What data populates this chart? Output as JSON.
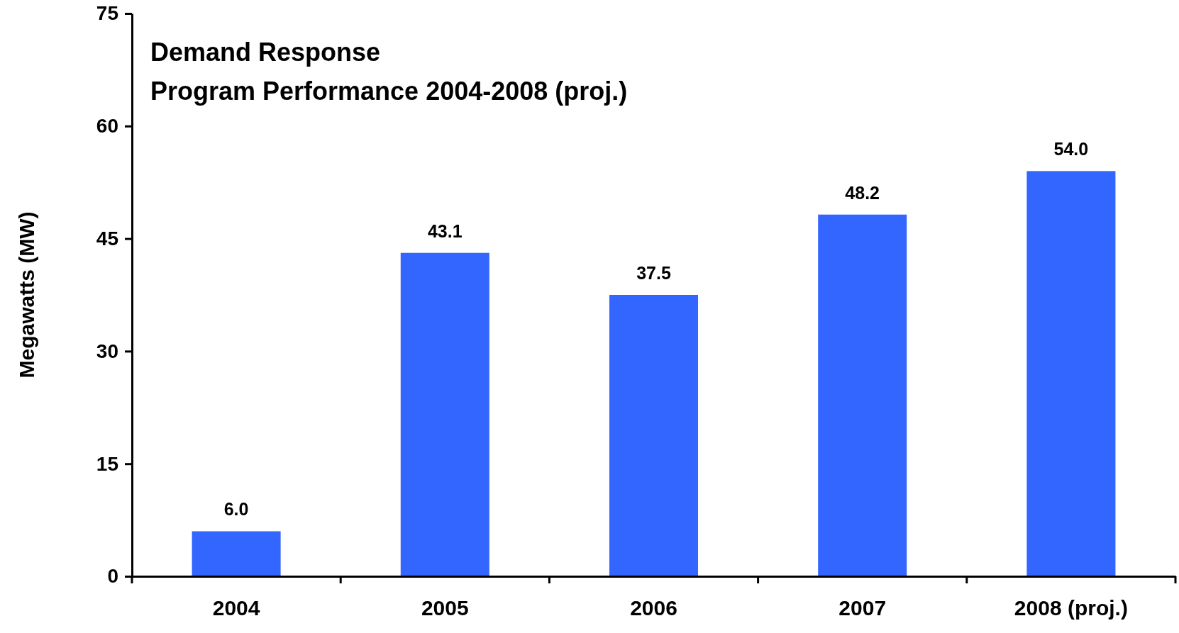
{
  "chart_data": {
    "type": "bar",
    "title": "Demand Response",
    "subtitle": "Program Performance 2004-2008 (proj.)",
    "ylabel": "Megawatts (MW)",
    "categories": [
      "2004",
      "2005",
      "2006",
      "2007",
      "2008 (proj.)"
    ],
    "values": [
      6.0,
      43.1,
      37.5,
      48.2,
      54.0
    ],
    "value_labels": [
      "6.0",
      "43.1",
      "37.5",
      "48.2",
      "54.0"
    ],
    "color": "#3366ff",
    "ylim": [
      0,
      75
    ],
    "yticks": [
      0,
      15,
      30,
      45,
      60,
      75
    ],
    "grid": false
  }
}
